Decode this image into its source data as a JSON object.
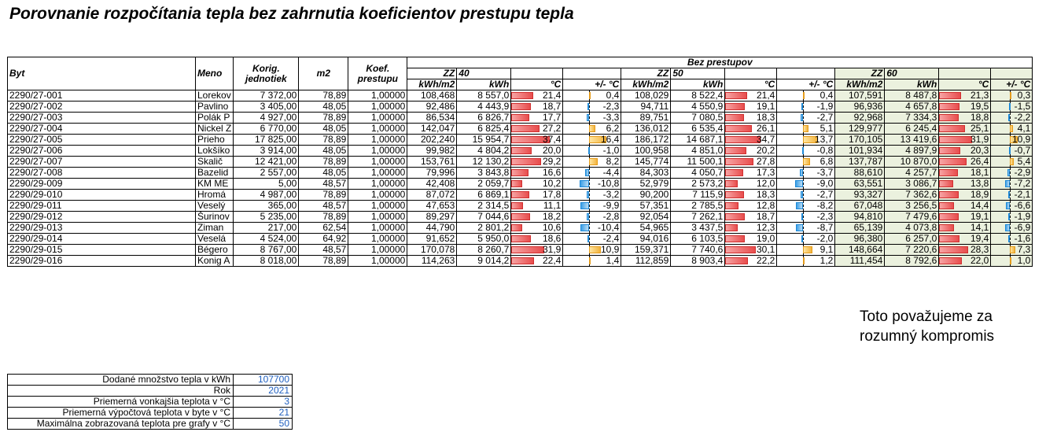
{
  "title": "Porovnanie rozpočítania tepla bez zahrnutia koeficientov prestupu tepla",
  "headers": {
    "byt": "Byt",
    "meno": "Meno",
    "korig": "Korig. jednotiek",
    "m2": "m2",
    "koef": "Koef. prestupu",
    "group": "Bez prestupov",
    "zz": "ZZ",
    "kwhm2": "kWh/m2",
    "kwh": "kWh",
    "degc": "°C",
    "diff": "+/- °C",
    "t40": "40",
    "t50": "50",
    "t60": "60"
  },
  "rows": [
    {
      "byt": "2290/27-001",
      "meno": "Lorekov",
      "korig": "7 372,00",
      "m2": "78,89",
      "koef": "1,00000",
      "s40": [
        "108,468",
        "8 557,0",
        "21,4",
        "0,4"
      ],
      "s50": [
        "108,029",
        "8 522,4",
        "21,4",
        "0,4"
      ],
      "s60": [
        "107,591",
        "8 487,8",
        "21,3",
        "0,3"
      ]
    },
    {
      "byt": "2290/27-002",
      "meno": "Pavlino",
      "korig": "3 405,00",
      "m2": "48,05",
      "koef": "1,00000",
      "s40": [
        "92,486",
        "4 443,9",
        "18,7",
        "-2,3"
      ],
      "s50": [
        "94,711",
        "4 550,9",
        "19,1",
        "-1,9"
      ],
      "s60": [
        "96,936",
        "4 657,8",
        "19,5",
        "-1,5"
      ]
    },
    {
      "byt": "2290/27-003",
      "meno": "Polák P",
      "korig": "4 927,00",
      "m2": "78,89",
      "koef": "1,00000",
      "s40": [
        "86,534",
        "6 826,7",
        "17,7",
        "-3,3"
      ],
      "s50": [
        "89,751",
        "7 080,5",
        "18,3",
        "-2,7"
      ],
      "s60": [
        "92,968",
        "7 334,3",
        "18,8",
        "-2,2"
      ]
    },
    {
      "byt": "2290/27-004",
      "meno": "Nickel Z",
      "korig": "6 770,00",
      "m2": "48,05",
      "koef": "1,00000",
      "s40": [
        "142,047",
        "6 825,4",
        "27,2",
        "6,2"
      ],
      "s50": [
        "136,012",
        "6 535,4",
        "26,1",
        "5,1"
      ],
      "s60": [
        "129,977",
        "6 245,4",
        "25,1",
        "4,1"
      ]
    },
    {
      "byt": "2290/27-005",
      "meno": "Prieho",
      "korig": "17 825,00",
      "m2": "78,89",
      "koef": "1,00000",
      "s40": [
        "202,240",
        "15 954,7",
        "37,4",
        "16,4"
      ],
      "s50": [
        "186,172",
        "14 687,1",
        "34,7",
        "13,7"
      ],
      "s60": [
        "170,105",
        "13 419,6",
        "31,9",
        "10,9"
      ]
    },
    {
      "byt": "2290/27-006",
      "meno": "Lokšíko",
      "korig": "3 914,00",
      "m2": "48,05",
      "koef": "1,00000",
      "s40": [
        "99,982",
        "4 804,2",
        "20,0",
        "-1,0"
      ],
      "s50": [
        "100,958",
        "4 851,0",
        "20,2",
        "-0,8"
      ],
      "s60": [
        "101,934",
        "4 897,9",
        "20,3",
        "-0,7"
      ]
    },
    {
      "byt": "2290/27-007",
      "meno": "Skalič",
      "korig": "12 421,00",
      "m2": "78,89",
      "koef": "1,00000",
      "s40": [
        "153,761",
        "12 130,2",
        "29,2",
        "8,2"
      ],
      "s50": [
        "145,774",
        "11 500,1",
        "27,8",
        "6,8"
      ],
      "s60": [
        "137,787",
        "10 870,0",
        "26,4",
        "5,4"
      ]
    },
    {
      "byt": "2290/27-008",
      "meno": "Bazelid",
      "korig": "2 557,00",
      "m2": "48,05",
      "koef": "1,00000",
      "s40": [
        "79,996",
        "3 843,8",
        "16,6",
        "-4,4"
      ],
      "s50": [
        "84,303",
        "4 050,7",
        "17,3",
        "-3,7"
      ],
      "s60": [
        "88,610",
        "4 257,7",
        "18,1",
        "-2,9"
      ]
    },
    {
      "byt": "2290/29-009",
      "meno": "KM ME",
      "korig": "5,00",
      "m2": "48,57",
      "koef": "1,00000",
      "s40": [
        "42,408",
        "2 059,7",
        "10,2",
        "-10,8"
      ],
      "s50": [
        "52,979",
        "2 573,2",
        "12,0",
        "-9,0"
      ],
      "s60": [
        "63,551",
        "3 086,7",
        "13,8",
        "-7,2"
      ]
    },
    {
      "byt": "2290/29-010",
      "meno": "Hromá",
      "korig": "4 987,00",
      "m2": "78,89",
      "koef": "1,00000",
      "s40": [
        "87,072",
        "6 869,1",
        "17,8",
        "-3,2"
      ],
      "s50": [
        "90,200",
        "7 115,9",
        "18,3",
        "-2,7"
      ],
      "s60": [
        "93,327",
        "7 362,6",
        "18,9",
        "-2,1"
      ]
    },
    {
      "byt": "2290/29-011",
      "meno": "Veselý",
      "korig": "365,00",
      "m2": "48,57",
      "koef": "1,00000",
      "s40": [
        "47,653",
        "2 314,5",
        "11,1",
        "-9,9"
      ],
      "s50": [
        "57,351",
        "2 785,5",
        "12,8",
        "-8,2"
      ],
      "s60": [
        "67,048",
        "3 256,5",
        "14,4",
        "-6,6"
      ]
    },
    {
      "byt": "2290/29-012",
      "meno": "Šurinov",
      "korig": "5 235,00",
      "m2": "78,89",
      "koef": "1,00000",
      "s40": [
        "89,297",
        "7 044,6",
        "18,2",
        "-2,8"
      ],
      "s50": [
        "92,054",
        "7 262,1",
        "18,7",
        "-2,3"
      ],
      "s60": [
        "94,810",
        "7 479,6",
        "19,1",
        "-1,9"
      ]
    },
    {
      "byt": "2290/29-013",
      "meno": "Ziman",
      "korig": "217,00",
      "m2": "62,54",
      "koef": "1,00000",
      "s40": [
        "44,790",
        "2 801,2",
        "10,6",
        "-10,4"
      ],
      "s50": [
        "54,965",
        "3 437,5",
        "12,3",
        "-8,7"
      ],
      "s60": [
        "65,139",
        "4 073,8",
        "14,1",
        "-6,9"
      ]
    },
    {
      "byt": "2290/29-014",
      "meno": "Veselá",
      "korig": "4 524,00",
      "m2": "64,92",
      "koef": "1,00000",
      "s40": [
        "91,652",
        "5 950,0",
        "18,6",
        "-2,4"
      ],
      "s50": [
        "94,016",
        "6 103,5",
        "19,0",
        "-2,0"
      ],
      "s60": [
        "96,380",
        "6 257,0",
        "19,4",
        "-1,6"
      ]
    },
    {
      "byt": "2290/29-015",
      "meno": "Bégero",
      "korig": "8 767,00",
      "m2": "48,57",
      "koef": "1,00000",
      "s40": [
        "170,078",
        "8 260,7",
        "31,9",
        "10,9"
      ],
      "s50": [
        "159,371",
        "7 740,6",
        "30,1",
        "9,1"
      ],
      "s60": [
        "148,664",
        "7 220,6",
        "28,3",
        "7,3"
      ]
    },
    {
      "byt": "2290/29-016",
      "meno": "Konig A",
      "korig": "8 018,00",
      "m2": "78,89",
      "koef": "1,00000",
      "s40": [
        "114,263",
        "9 014,2",
        "22,4",
        "1,4"
      ],
      "s50": [
        "112,859",
        "8 903,4",
        "22,2",
        "1,2"
      ],
      "s60": [
        "111,454",
        "8 792,6",
        "22,0",
        "1,0"
      ]
    }
  ],
  "note_line1": "Toto považujeme za",
  "note_line2": "rozumný kompromis",
  "params": [
    {
      "label": "Dodané množstvo tepla v kWh",
      "value": "107700"
    },
    {
      "label": "Rok",
      "value": "2021"
    },
    {
      "label": "Priemerná vonkajšia teplota v °C",
      "value": "3"
    },
    {
      "label": "Priemerná výpočtová teplota v byte v °C",
      "value": "21"
    },
    {
      "label": "Maximálna zobrazovaná teplota pre grafy v °C",
      "value": "50"
    }
  ],
  "bar_max_temp": 50,
  "colors": {
    "high": "#e84d4d",
    "positive": "#f2b33d",
    "negative": "#3ea0e6",
    "highlight": "#ebf1de",
    "param_value": "#1f5fbf"
  }
}
